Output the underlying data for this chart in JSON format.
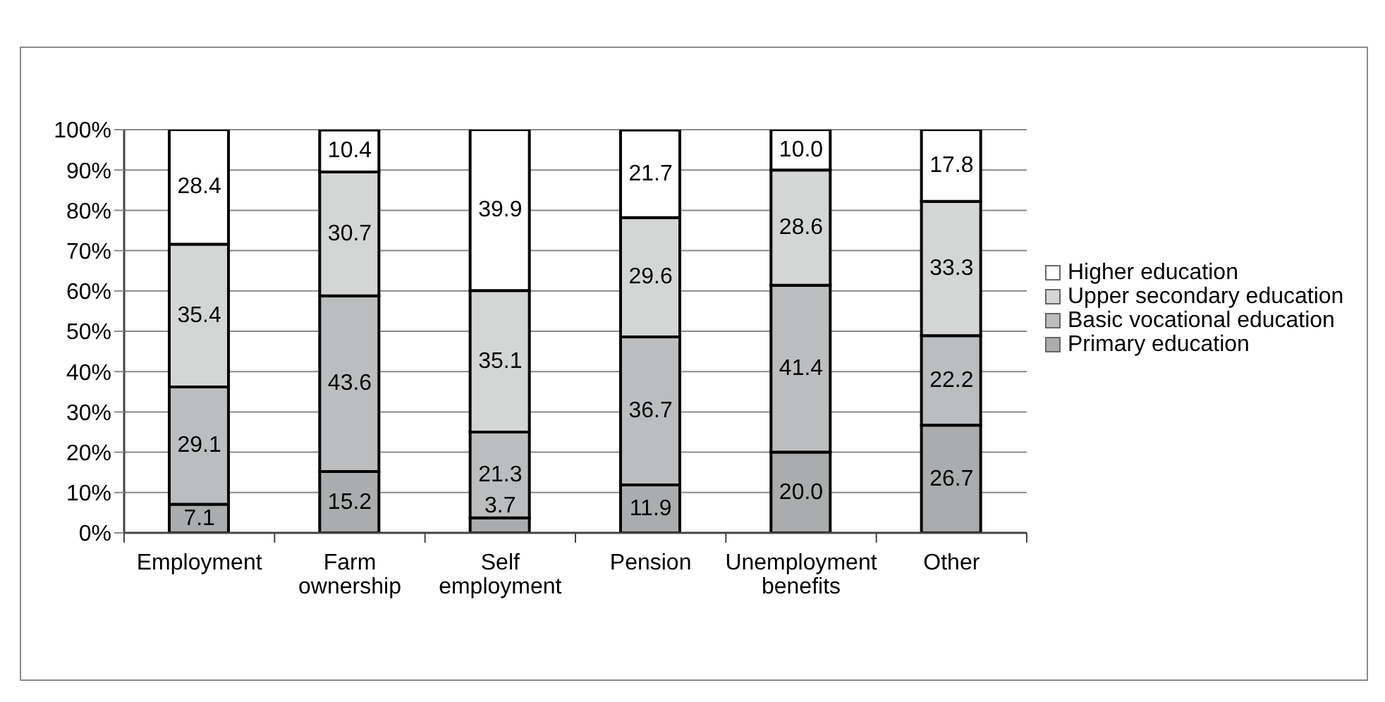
{
  "chart_data": {
    "type": "bar",
    "stacked": true,
    "categories": [
      "Employment",
      "Farm ownership",
      "Self employment",
      "Pension",
      "Unemployment benefits",
      "Other"
    ],
    "series": [
      {
        "name": "Primary education",
        "color": "#aaacad",
        "values": [
          7.1,
          15.2,
          3.7,
          11.9,
          20.0,
          26.7
        ],
        "value_labels": [
          "7.1",
          "15.2",
          "3.7",
          "11.9",
          "20.0",
          "26.7"
        ]
      },
      {
        "name": "Basic vocational education",
        "color": "#bbbdbe",
        "values": [
          29.1,
          43.6,
          21.3,
          36.7,
          41.4,
          22.2
        ],
        "value_labels": [
          "29.1",
          "43.6",
          "21.3",
          "36.7",
          "41.4",
          "22.2"
        ]
      },
      {
        "name": "Upper secondary education",
        "color": "#d4d6d6",
        "values": [
          35.4,
          30.7,
          35.1,
          29.6,
          28.6,
          33.3
        ],
        "value_labels": [
          "35.4",
          "30.7",
          "35.1",
          "29.6",
          "28.6",
          "33.3"
        ]
      },
      {
        "name": "Higher education",
        "color": "#ffffff",
        "values": [
          28.4,
          10.4,
          39.9,
          21.7,
          10.0,
          17.8
        ],
        "value_labels": [
          "28.4",
          "10.4",
          "39.9",
          "21.7",
          "10.0",
          "17.8"
        ]
      }
    ],
    "ylim": [
      0,
      100
    ],
    "yticks": [
      {
        "value": 0,
        "label": "0%"
      },
      {
        "value": 10,
        "label": "10%"
      },
      {
        "value": 20,
        "label": "20%"
      },
      {
        "value": 30,
        "label": "30%"
      },
      {
        "value": 40,
        "label": "40%"
      },
      {
        "value": 50,
        "label": "50%"
      },
      {
        "value": 60,
        "label": "60%"
      },
      {
        "value": 70,
        "label": "70%"
      },
      {
        "value": 80,
        "label": "80%"
      },
      {
        "value": 90,
        "label": "90%"
      },
      {
        "value": 100,
        "label": "100%"
      }
    ],
    "grid": "y",
    "legend": "right"
  }
}
